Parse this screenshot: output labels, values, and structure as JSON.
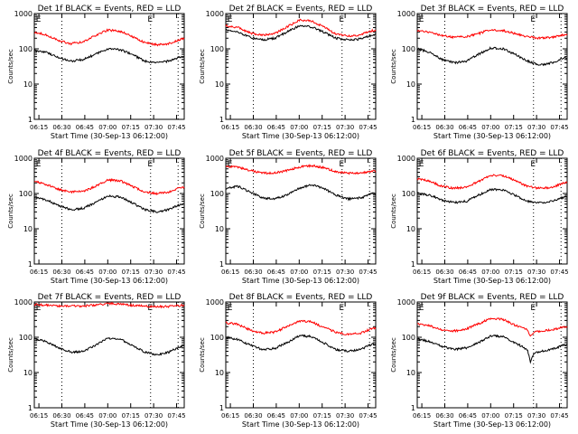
{
  "figure": {
    "x_tick_labels": [
      "06:15",
      "06:30",
      "06:45",
      "07:00",
      "07:15",
      "07:30",
      "07:45"
    ],
    "y_tick_labels": [
      "1",
      "10",
      "100",
      "1000"
    ],
    "xlabel": "Start Time (30-Sep-13 06:12:00)",
    "ylabel": "Counts/sec",
    "marker_e_left": "E",
    "marker_e_right": "E",
    "colors": {
      "events": "#000000",
      "lld": "#ff0000",
      "frame": "#000000"
    }
  },
  "chart_data": [
    {
      "type": "line",
      "title": "Det 1f BLACK = Events, RED = LLD",
      "xlabel": "Start Time (30-Sep-13 06:12:00)",
      "ylabel": "Counts/sec",
      "x_range": [
        "06:12",
        "07:50"
      ],
      "ylim": [
        1,
        1000
      ],
      "yscale": "log",
      "event_markers": [
        "06:13",
        "07:26"
      ],
      "dotted_lines": [
        "06:30",
        "07:28",
        "07:46"
      ],
      "series": [
        {
          "name": "Events",
          "color": "#000000",
          "x": [
            "06:12",
            "06:20",
            "06:28",
            "06:36",
            "06:44",
            "06:52",
            "07:00",
            "07:08",
            "07:16",
            "07:24",
            "07:32",
            "07:40",
            "07:48"
          ],
          "values": [
            90,
            80,
            55,
            45,
            50,
            70,
            100,
            95,
            70,
            45,
            40,
            45,
            60
          ]
        },
        {
          "name": "LLD",
          "color": "#ff0000",
          "x": [
            "06:12",
            "06:20",
            "06:28",
            "06:36",
            "06:44",
            "06:52",
            "07:00",
            "07:08",
            "07:16",
            "07:24",
            "07:32",
            "07:40",
            "07:48"
          ],
          "values": [
            300,
            250,
            170,
            140,
            160,
            240,
            340,
            320,
            220,
            150,
            130,
            140,
            190
          ]
        }
      ]
    },
    {
      "type": "line",
      "title": "Det 2f BLACK = Events, RED = LLD",
      "xlabel": "Start Time (30-Sep-13 06:12:00)",
      "ylabel": "Counts/sec",
      "x_range": [
        "06:12",
        "07:50"
      ],
      "ylim": [
        1,
        1000
      ],
      "yscale": "log",
      "event_markers": [
        "06:13",
        "07:26"
      ],
      "dotted_lines": [
        "06:30",
        "07:28",
        "07:46"
      ],
      "series": [
        {
          "name": "Events",
          "color": "#000000",
          "x": [
            "06:12",
            "06:20",
            "06:28",
            "06:36",
            "06:44",
            "06:52",
            "07:00",
            "07:08",
            "07:16",
            "07:24",
            "07:32",
            "07:40",
            "07:48"
          ],
          "values": [
            350,
            300,
            210,
            180,
            200,
            300,
            450,
            420,
            300,
            200,
            180,
            190,
            250
          ]
        },
        {
          "name": "LLD",
          "color": "#ff0000",
          "x": [
            "06:12",
            "06:20",
            "06:28",
            "06:36",
            "06:44",
            "06:52",
            "07:00",
            "07:08",
            "07:16",
            "07:24",
            "07:32",
            "07:40",
            "07:48"
          ],
          "values": [
            450,
            400,
            280,
            240,
            270,
            420,
            650,
            620,
            420,
            260,
            230,
            250,
            330
          ]
        }
      ]
    },
    {
      "type": "line",
      "title": "Det 3f BLACK = Events, RED = LLD",
      "xlabel": "Start Time (30-Sep-13 06:12:00)",
      "ylabel": "Counts/sec",
      "x_range": [
        "06:12",
        "07:50"
      ],
      "ylim": [
        1,
        1000
      ],
      "yscale": "log",
      "event_markers": [
        "06:13",
        "07:26"
      ],
      "dotted_lines": [
        "06:30",
        "07:28",
        "07:46"
      ],
      "series": [
        {
          "name": "Events",
          "color": "#000000",
          "x": [
            "06:12",
            "06:20",
            "06:28",
            "06:36",
            "06:44",
            "06:52",
            "07:00",
            "07:08",
            "07:16",
            "07:24",
            "07:32",
            "07:40",
            "07:48"
          ],
          "values": [
            100,
            80,
            50,
            40,
            45,
            70,
            105,
            100,
            70,
            45,
            35,
            40,
            55
          ]
        },
        {
          "name": "LLD",
          "color": "#ff0000",
          "x": [
            "06:12",
            "06:20",
            "06:28",
            "06:36",
            "06:44",
            "06:52",
            "07:00",
            "07:08",
            "07:16",
            "07:24",
            "07:32",
            "07:40",
            "07:48"
          ],
          "values": [
            320,
            300,
            240,
            210,
            220,
            270,
            350,
            330,
            270,
            220,
            200,
            210,
            250
          ]
        }
      ]
    },
    {
      "type": "line",
      "title": "Det 4f BLACK = Events, RED = LLD",
      "xlabel": "Start Time (30-Sep-13 06:12:00)",
      "ylabel": "Counts/sec",
      "x_range": [
        "06:12",
        "07:50"
      ],
      "ylim": [
        1,
        1000
      ],
      "yscale": "log",
      "event_markers": [
        "06:13",
        "07:26"
      ],
      "dotted_lines": [
        "06:30",
        "07:28",
        "07:46"
      ],
      "series": [
        {
          "name": "Events",
          "color": "#000000",
          "x": [
            "06:12",
            "06:20",
            "06:28",
            "06:36",
            "06:44",
            "06:52",
            "07:00",
            "07:08",
            "07:16",
            "07:24",
            "07:32",
            "07:40",
            "07:48"
          ],
          "values": [
            80,
            65,
            45,
            35,
            38,
            55,
            85,
            80,
            55,
            35,
            30,
            35,
            50
          ]
        },
        {
          "name": "LLD",
          "color": "#ff0000",
          "x": [
            "06:12",
            "06:20",
            "06:28",
            "06:36",
            "06:44",
            "06:52",
            "07:00",
            "07:08",
            "07:16",
            "07:24",
            "07:32",
            "07:40",
            "07:48"
          ],
          "values": [
            220,
            180,
            130,
            110,
            115,
            160,
            240,
            230,
            160,
            110,
            100,
            110,
            150
          ]
        }
      ]
    },
    {
      "type": "line",
      "title": "Det 5f BLACK = Events, RED = LLD",
      "xlabel": "Start Time (30-Sep-13 06:12:00)",
      "ylabel": "Counts/sec",
      "x_range": [
        "06:12",
        "07:50"
      ],
      "ylim": [
        1,
        1000
      ],
      "yscale": "log",
      "event_markers": [
        "06:13",
        "07:26"
      ],
      "dotted_lines": [
        "06:30",
        "07:28",
        "07:46"
      ],
      "series": [
        {
          "name": "Events",
          "color": "#000000",
          "x": [
            "06:12",
            "06:20",
            "06:28",
            "06:36",
            "06:44",
            "06:52",
            "07:00",
            "07:08",
            "07:16",
            "07:24",
            "07:32",
            "07:40",
            "07:48"
          ],
          "values": [
            140,
            160,
            110,
            75,
            70,
            90,
            140,
            180,
            140,
            90,
            70,
            75,
            100
          ]
        },
        {
          "name": "LLD",
          "color": "#ff0000",
          "x": [
            "06:12",
            "06:20",
            "06:28",
            "06:36",
            "06:44",
            "06:52",
            "07:00",
            "07:08",
            "07:16",
            "07:24",
            "07:32",
            "07:40",
            "07:48"
          ],
          "values": [
            600,
            550,
            450,
            380,
            380,
            450,
            560,
            620,
            540,
            420,
            370,
            380,
            430
          ]
        }
      ]
    },
    {
      "type": "line",
      "title": "Det 6f BLACK = Events, RED = LLD",
      "xlabel": "Start Time (30-Sep-13 06:12:00)",
      "ylabel": "Counts/sec",
      "x_range": [
        "06:12",
        "07:50"
      ],
      "ylim": [
        1,
        1000
      ],
      "yscale": "log",
      "event_markers": [
        "06:13",
        "07:26"
      ],
      "dotted_lines": [
        "06:30",
        "07:28",
        "07:46"
      ],
      "series": [
        {
          "name": "Events",
          "color": "#000000",
          "x": [
            "06:12",
            "06:20",
            "06:28",
            "06:36",
            "06:44",
            "06:52",
            "07:00",
            "07:08",
            "07:16",
            "07:24",
            "07:32",
            "07:40",
            "07:48"
          ],
          "values": [
            100,
            90,
            65,
            55,
            60,
            90,
            130,
            125,
            90,
            60,
            55,
            60,
            80
          ]
        },
        {
          "name": "LLD",
          "color": "#ff0000",
          "x": [
            "06:12",
            "06:20",
            "06:28",
            "06:36",
            "06:44",
            "06:52",
            "07:00",
            "07:08",
            "07:16",
            "07:24",
            "07:32",
            "07:40",
            "07:48"
          ],
          "values": [
            260,
            230,
            160,
            140,
            150,
            220,
            330,
            320,
            230,
            160,
            140,
            150,
            200
          ]
        }
      ]
    },
    {
      "type": "line",
      "title": "Det 7f BLACK = Events, RED = LLD",
      "xlabel": "Start Time (30-Sep-13 06:12:00)",
      "ylabel": "Counts/sec",
      "x_range": [
        "06:12",
        "07:50"
      ],
      "ylim": [
        1,
        1000
      ],
      "yscale": "log",
      "event_markers": [
        "06:13",
        "07:26"
      ],
      "dotted_lines": [
        "06:30",
        "07:28",
        "07:46"
      ],
      "series": [
        {
          "name": "Events",
          "color": "#000000",
          "x": [
            "06:12",
            "06:20",
            "06:28",
            "06:36",
            "06:44",
            "06:52",
            "07:00",
            "07:08",
            "07:16",
            "07:24",
            "07:32",
            "07:40",
            "07:48"
          ],
          "values": [
            90,
            75,
            50,
            38,
            40,
            60,
            95,
            90,
            60,
            38,
            32,
            38,
            55
          ]
        },
        {
          "name": "LLD",
          "color": "#ff0000",
          "x": [
            "06:12",
            "06:20",
            "06:28",
            "06:36",
            "06:44",
            "06:52",
            "07:00",
            "07:08",
            "07:16",
            "07:24",
            "07:32",
            "07:40",
            "07:48"
          ],
          "values": [
            850,
            820,
            780,
            760,
            770,
            820,
            900,
            880,
            800,
            760,
            740,
            750,
            800
          ]
        }
      ]
    },
    {
      "type": "line",
      "title": "Det 8f BLACK = Events, RED = LLD",
      "xlabel": "Start Time (30-Sep-13 06:12:00)",
      "ylabel": "Counts/sec",
      "x_range": [
        "06:12",
        "07:50"
      ],
      "ylim": [
        1,
        1000
      ],
      "yscale": "log",
      "event_markers": [
        "06:13",
        "07:26"
      ],
      "dotted_lines": [
        "06:30",
        "07:28",
        "07:46"
      ],
      "series": [
        {
          "name": "Events",
          "color": "#000000",
          "x": [
            "06:12",
            "06:20",
            "06:28",
            "06:36",
            "06:44",
            "06:52",
            "07:00",
            "07:08",
            "07:16",
            "07:24",
            "07:32",
            "07:40",
            "07:48"
          ],
          "values": [
            100,
            85,
            60,
            45,
            48,
            70,
            110,
            105,
            70,
            45,
            40,
            45,
            65
          ]
        },
        {
          "name": "LLD",
          "color": "#ff0000",
          "x": [
            "06:12",
            "06:20",
            "06:28",
            "06:36",
            "06:44",
            "06:52",
            "07:00",
            "07:08",
            "07:16",
            "07:24",
            "07:32",
            "07:40",
            "07:48"
          ],
          "values": [
            260,
            230,
            160,
            130,
            140,
            200,
            290,
            280,
            190,
            140,
            120,
            130,
            180
          ]
        }
      ]
    },
    {
      "type": "line",
      "title": "Det 9f BLACK = Events, RED = LLD",
      "xlabel": "Start Time (30-Sep-13 06:12:00)",
      "ylabel": "Counts/sec",
      "x_range": [
        "06:12",
        "07:50"
      ],
      "ylim": [
        1,
        1000
      ],
      "yscale": "log",
      "event_markers": [
        "06:13",
        "07:26"
      ],
      "dotted_lines": [
        "06:30",
        "07:28",
        "07:46"
      ],
      "series": [
        {
          "name": "Events",
          "color": "#000000",
          "x": [
            "06:12",
            "06:20",
            "06:28",
            "06:36",
            "06:44",
            "06:52",
            "07:00",
            "07:08",
            "07:16",
            "07:24",
            "07:26",
            "07:28",
            "07:32",
            "07:40",
            "07:48"
          ],
          "values": [
            90,
            75,
            55,
            45,
            50,
            70,
            110,
            105,
            70,
            45,
            20,
            35,
            40,
            45,
            60
          ]
        },
        {
          "name": "LLD",
          "color": "#ff0000",
          "x": [
            "06:12",
            "06:20",
            "06:28",
            "06:36",
            "06:44",
            "06:52",
            "07:00",
            "07:08",
            "07:16",
            "07:24",
            "07:26",
            "07:28",
            "07:32",
            "07:40",
            "07:48"
          ],
          "values": [
            240,
            210,
            160,
            150,
            170,
            240,
            340,
            320,
            220,
            160,
            100,
            140,
            150,
            160,
            200
          ]
        }
      ]
    }
  ]
}
